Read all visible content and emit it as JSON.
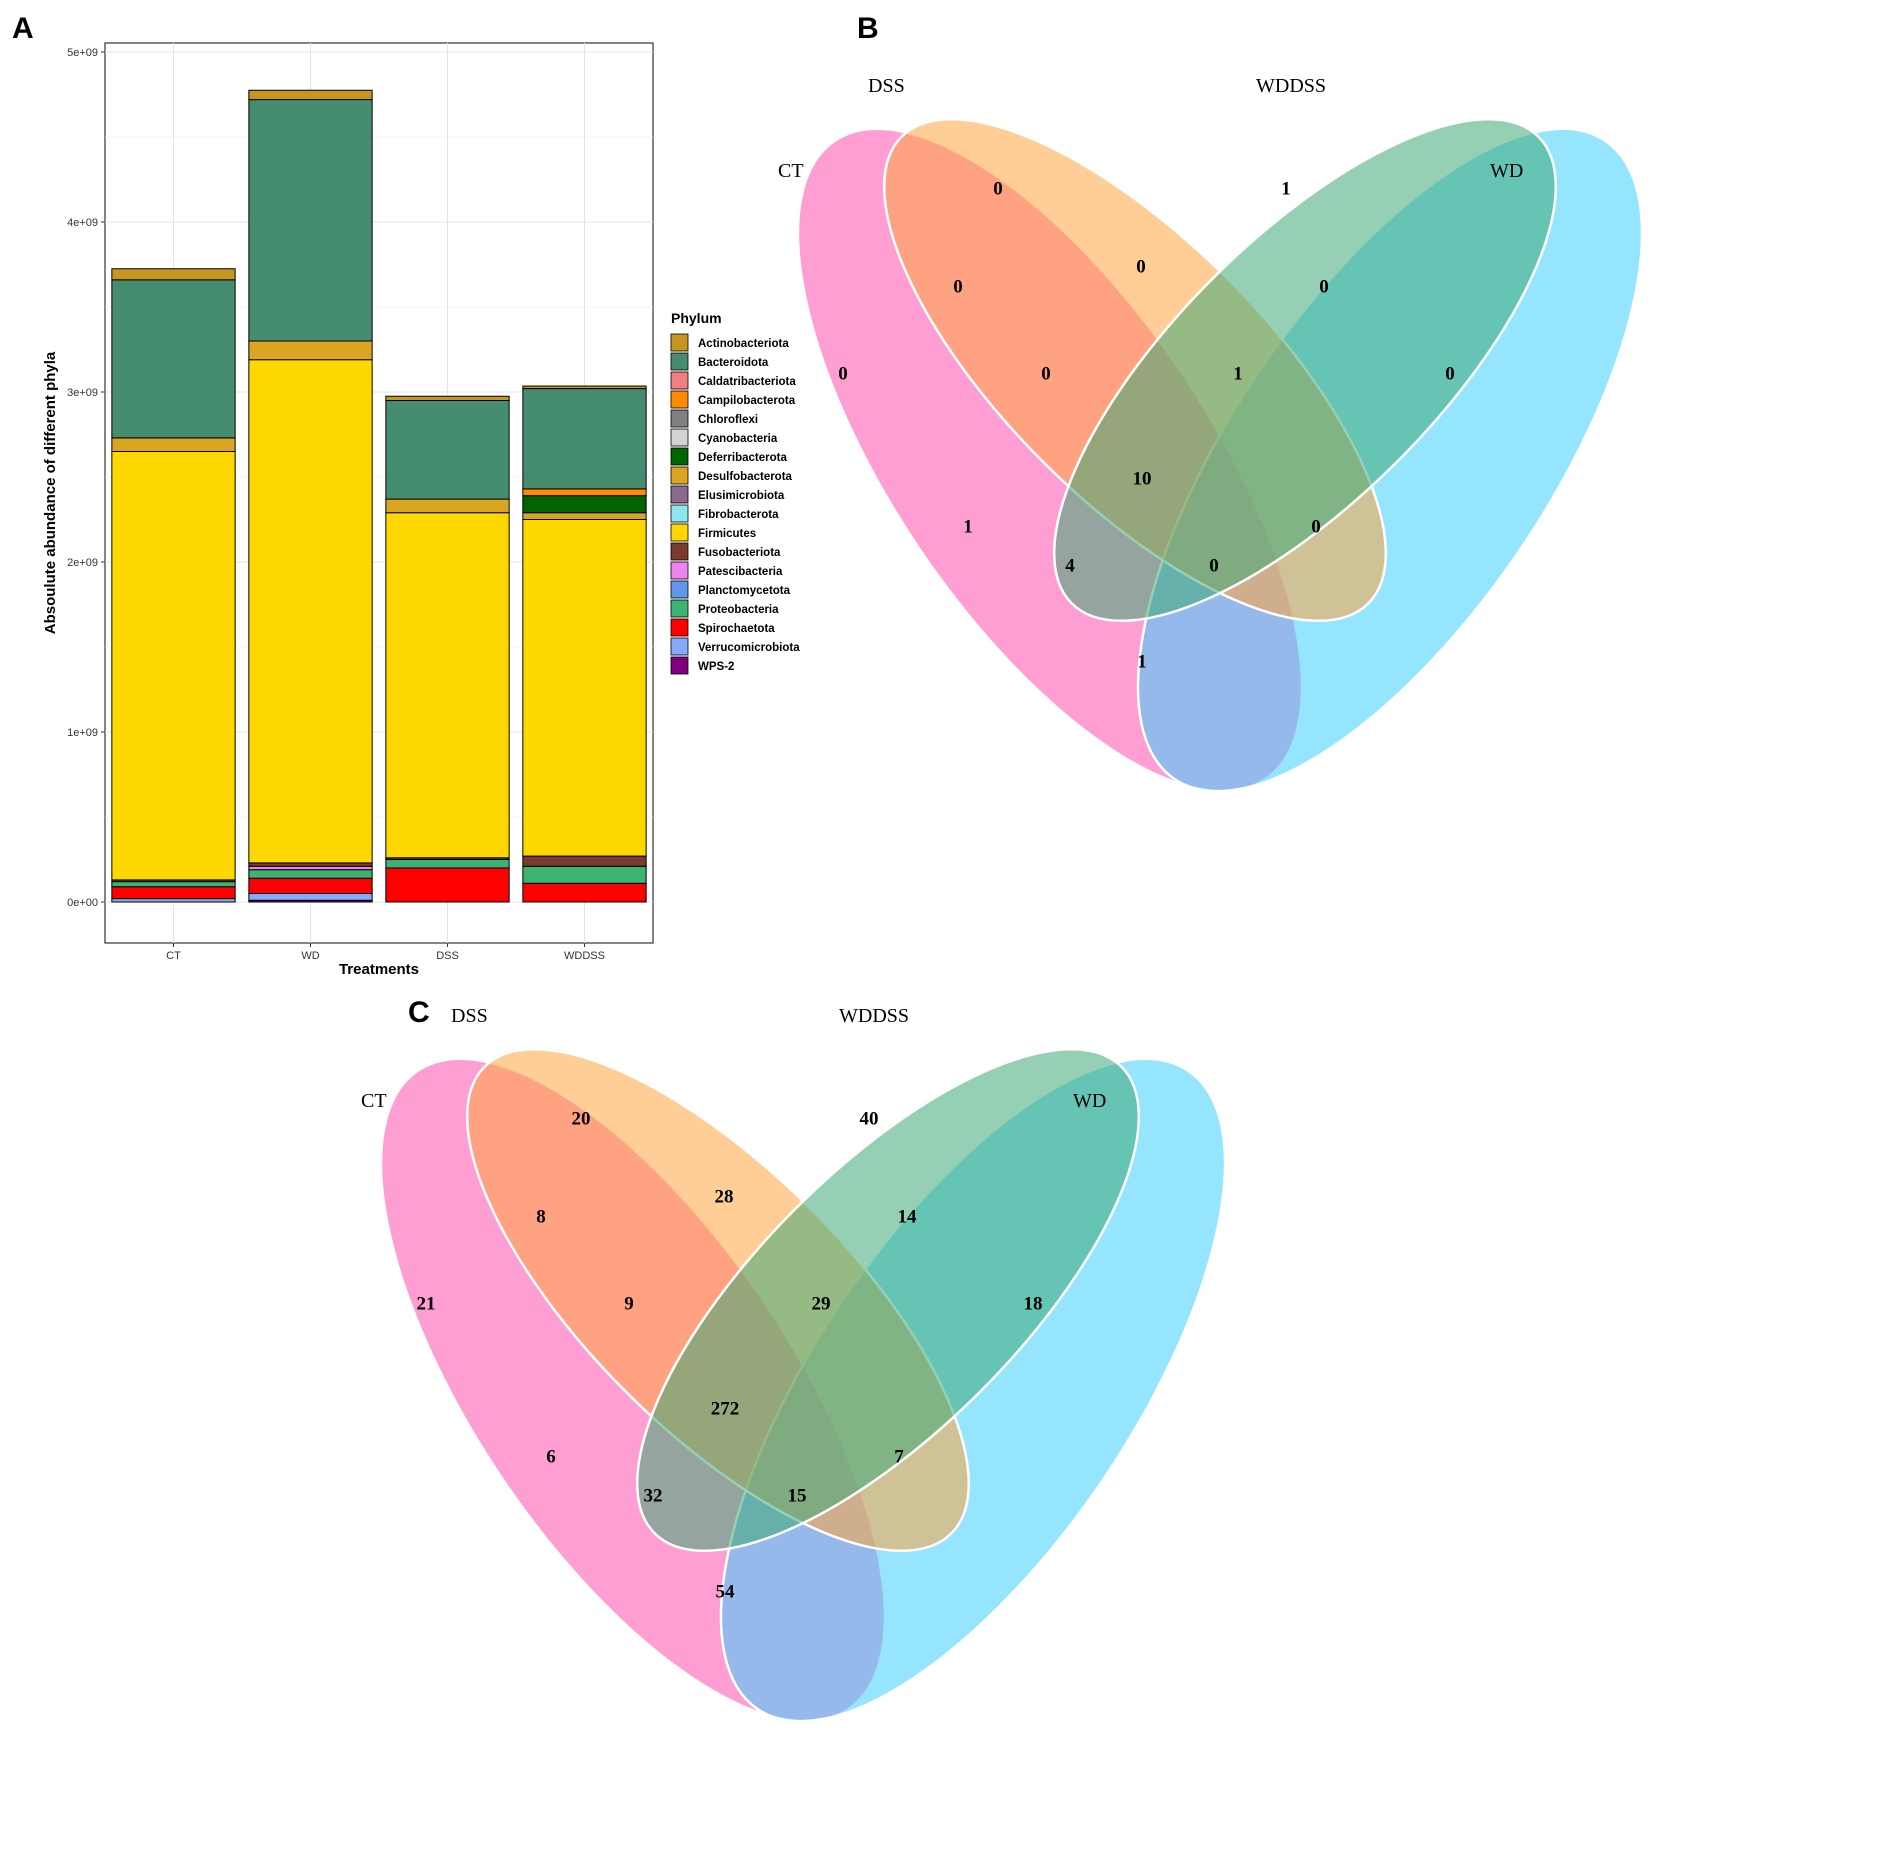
{
  "panel_labels": {
    "a": "A",
    "b": "B",
    "c": "C"
  },
  "chart_data": [
    {
      "type": "bar",
      "stacked": true,
      "title": "",
      "xlabel": "Treatments",
      "ylabel": "Absoulute abundance of different phyla",
      "categories": [
        "CT",
        "WD",
        "DSS",
        "WDDSS"
      ],
      "ylim": [
        0,
        5000000000
      ],
      "y_ticks": [
        0,
        1000000000,
        2000000000,
        3000000000,
        4000000000,
        5000000000
      ],
      "y_tick_labels": [
        "0e+00",
        "1e+09",
        "2e+09",
        "3e+09",
        "4e+09",
        "5e+09"
      ],
      "legend_title": "Phylum",
      "legend_position": "right",
      "grid": true,
      "series": [
        {
          "name": "Actinobacteriota",
          "color": "#C8961E",
          "values": [
            65000000,
            55000000,
            25000000,
            15000000
          ]
        },
        {
          "name": "Bacteroidota",
          "color": "#468C6E",
          "values": [
            930000000,
            1420000000,
            580000000,
            590000000
          ]
        },
        {
          "name": "Caldatribacteriota",
          "color": "#F08080",
          "values": [
            0,
            0,
            0,
            0
          ]
        },
        {
          "name": "Campilobacterota",
          "color": "#FF8C00",
          "values": [
            0,
            0,
            0,
            40000000
          ]
        },
        {
          "name": "Chloroflexi",
          "color": "#808080",
          "values": [
            0,
            0,
            0,
            0
          ]
        },
        {
          "name": "Cyanobacteria",
          "color": "#D3D3D3",
          "values": [
            0,
            0,
            0,
            0
          ]
        },
        {
          "name": "Deferribacterota",
          "color": "#006400",
          "values": [
            0,
            0,
            0,
            100000000
          ]
        },
        {
          "name": "Desulfobacterota",
          "color": "#DAA520",
          "values": [
            80000000,
            110000000,
            80000000,
            40000000
          ]
        },
        {
          "name": "Elusimicrobiota",
          "color": "#8B6A8B",
          "values": [
            0,
            0,
            0,
            0
          ]
        },
        {
          "name": "Fibrobacterota",
          "color": "#8EE5EE",
          "values": [
            0,
            0,
            0,
            0
          ]
        },
        {
          "name": "Firmicutes",
          "color": "#FFD700",
          "values": [
            2520000000,
            2960000000,
            2030000000,
            1980000000
          ]
        },
        {
          "name": "Fusobacteriota",
          "color": "#7A3B2E",
          "values": [
            10000000,
            20000000,
            10000000,
            60000000
          ]
        },
        {
          "name": "Patescibacteria",
          "color": "#EE82EE",
          "values": [
            0,
            20000000,
            0,
            0
          ]
        },
        {
          "name": "Planctomycetota",
          "color": "#6495ED",
          "values": [
            0,
            0,
            0,
            0
          ]
        },
        {
          "name": "Proteobacteria",
          "color": "#3CB371",
          "values": [
            30000000,
            50000000,
            50000000,
            100000000
          ]
        },
        {
          "name": "Spirochaetota",
          "color": "#FF0000",
          "values": [
            70000000,
            90000000,
            200000000,
            110000000
          ]
        },
        {
          "name": "Verrucomicrobiota",
          "color": "#87A9FA",
          "values": [
            20000000,
            40000000,
            0,
            0
          ]
        },
        {
          "name": "WPS-2",
          "color": "#800080",
          "values": [
            0,
            10000000,
            0,
            0
          ]
        }
      ]
    },
    {
      "type": "venn",
      "panel": "B",
      "sets": [
        "CT",
        "DSS",
        "WDDSS",
        "WD"
      ],
      "set_colors": [
        "#FF4FAE",
        "#FFA63F",
        "#3FAA77",
        "#40CFFF"
      ],
      "regions": {
        "CT": 0,
        "DSS": 0,
        "WDDSS": 1,
        "WD": 0,
        "CT_DSS": 0,
        "DSS_WDDSS": 0,
        "WDDSS_WD": 0,
        "CT_DSS_WDDSS": 0,
        "DSS_WDDSS_WD": 1,
        "CT_DSS_WDDSS_WD": 10,
        "CT_WDDSS": 1,
        "DSS_WD": 0,
        "CT_WDDSS_WD": 4,
        "CT_DSS_WD": 0,
        "CT_WD": 1
      }
    },
    {
      "type": "venn",
      "panel": "C",
      "sets": [
        "CT",
        "DSS",
        "WDDSS",
        "WD"
      ],
      "set_colors": [
        "#FF4FAE",
        "#FFA63F",
        "#3FAA77",
        "#40CFFF"
      ],
      "regions": {
        "CT": 21,
        "DSS": 20,
        "WDDSS": 40,
        "WD": 18,
        "CT_DSS": 8,
        "DSS_WDDSS": 28,
        "WDDSS_WD": 14,
        "CT_DSS_WDDSS": 9,
        "DSS_WDDSS_WD": 29,
        "CT_DSS_WDDSS_WD": 272,
        "CT_WDDSS": 6,
        "DSS_WD": 7,
        "CT_WDDSS_WD": 32,
        "CT_DSS_WD": 15,
        "CT_WD": 54
      }
    }
  ]
}
